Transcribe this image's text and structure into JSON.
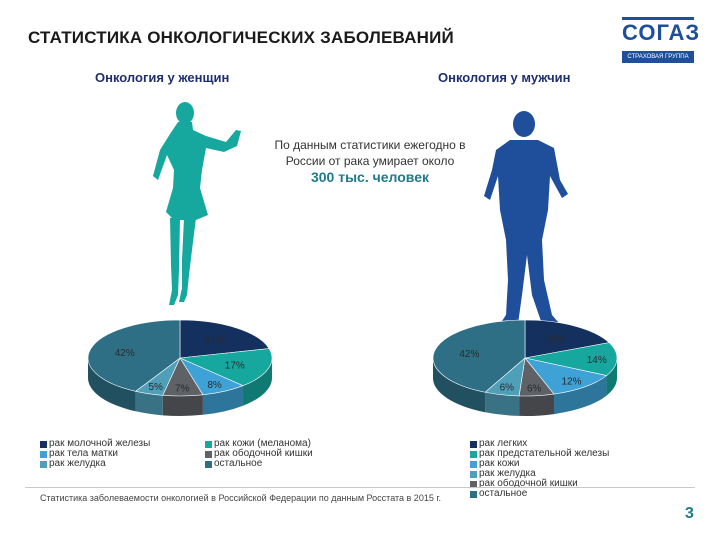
{
  "header": {
    "title": "СТАТИСТИКА ОНКОЛОГИЧЕСКИХ ЗАБОЛЕВАНИЙ",
    "logo_text": "СОГАЗ",
    "logo_subtitle": "СТРАХОВАЯ ГРУППА"
  },
  "women": {
    "title": "Онкология у женщин"
  },
  "men": {
    "title": "Онкология у мужчин"
  },
  "caption": {
    "line1": "По данным статистики ежегодно в",
    "line2": "России от рака умирает около",
    "highlight": "300 тыс. человек"
  },
  "colors": {
    "navy": "#14305f",
    "teal": "#16a89e",
    "sky": "#3fa2d6",
    "gray": "#5e6166",
    "petrol": "#2e6f85",
    "lightblue": "#4f9fb8",
    "female_figure": "#16a89e",
    "male_figure": "#1f4e9a"
  },
  "chart_data": [
    {
      "type": "pie",
      "name": "women",
      "slices": [
        {
          "label": "рак молочной железы",
          "value": 21,
          "display": "21%",
          "color": "#14305f"
        },
        {
          "label": "рак кожи (меланома)",
          "value": 17,
          "display": "17%",
          "color": "#16a89e"
        },
        {
          "label": "рак тела матки",
          "value": 8,
          "display": "8%",
          "color": "#3fa2d6"
        },
        {
          "label": "рак ободочной кишки",
          "value": 7,
          "display": "7%",
          "color": "#5e6166"
        },
        {
          "label": "рак желудка",
          "value": 5,
          "display": "5%",
          "color": "#4f9fb8"
        },
        {
          "label": "остальное",
          "value": 42,
          "display": "42%",
          "color": "#2e6f85"
        }
      ]
    },
    {
      "type": "pie",
      "name": "men",
      "slices": [
        {
          "label": "рак легких",
          "value": 18,
          "display": "18%",
          "color": "#14305f"
        },
        {
          "label": "рак предстательной железы",
          "value": 14,
          "display": "14%",
          "color": "#16a89e"
        },
        {
          "label": "рак кожи",
          "value": 12,
          "display": "12%",
          "color": "#3fa2d6"
        },
        {
          "label": "рак ободочной кишки",
          "value": 6,
          "display": "6%",
          "color": "#5e6166"
        },
        {
          "label": "рак желудка",
          "value": 6,
          "display": "6%",
          "color": "#4f9fb8"
        },
        {
          "label": "остальное",
          "value": 42,
          "display": "42%",
          "color": "#2e6f85"
        }
      ]
    }
  ],
  "legend_women": [
    {
      "label": "рак молочной железы",
      "color": "#14305f"
    },
    {
      "label": "рак тела матки",
      "color": "#3fa2d6"
    },
    {
      "label": "рак желудка",
      "color": "#4f9fb8"
    },
    {
      "label": "рак кожи (меланома)",
      "color": "#16a89e"
    },
    {
      "label": "рак ободочной кишки",
      "color": "#5e6166"
    },
    {
      "label": "остальное",
      "color": "#2e6f85"
    }
  ],
  "legend_men": [
    {
      "label": "рак легких",
      "color": "#14305f"
    },
    {
      "label": "рак предстательной железы",
      "color": "#16a89e"
    },
    {
      "label": "рак кожи",
      "color": "#3fa2d6"
    },
    {
      "label": "рак желудка",
      "color": "#4f9fb8"
    },
    {
      "label": "рак ободочной кишки",
      "color": "#5e6166"
    },
    {
      "label": "остальное",
      "color": "#2e6f85"
    }
  ],
  "footnote": "Статистика заболеваемости онкологией в Российской Федерации по данным Росстата в 2015 г.",
  "page_number": "3"
}
